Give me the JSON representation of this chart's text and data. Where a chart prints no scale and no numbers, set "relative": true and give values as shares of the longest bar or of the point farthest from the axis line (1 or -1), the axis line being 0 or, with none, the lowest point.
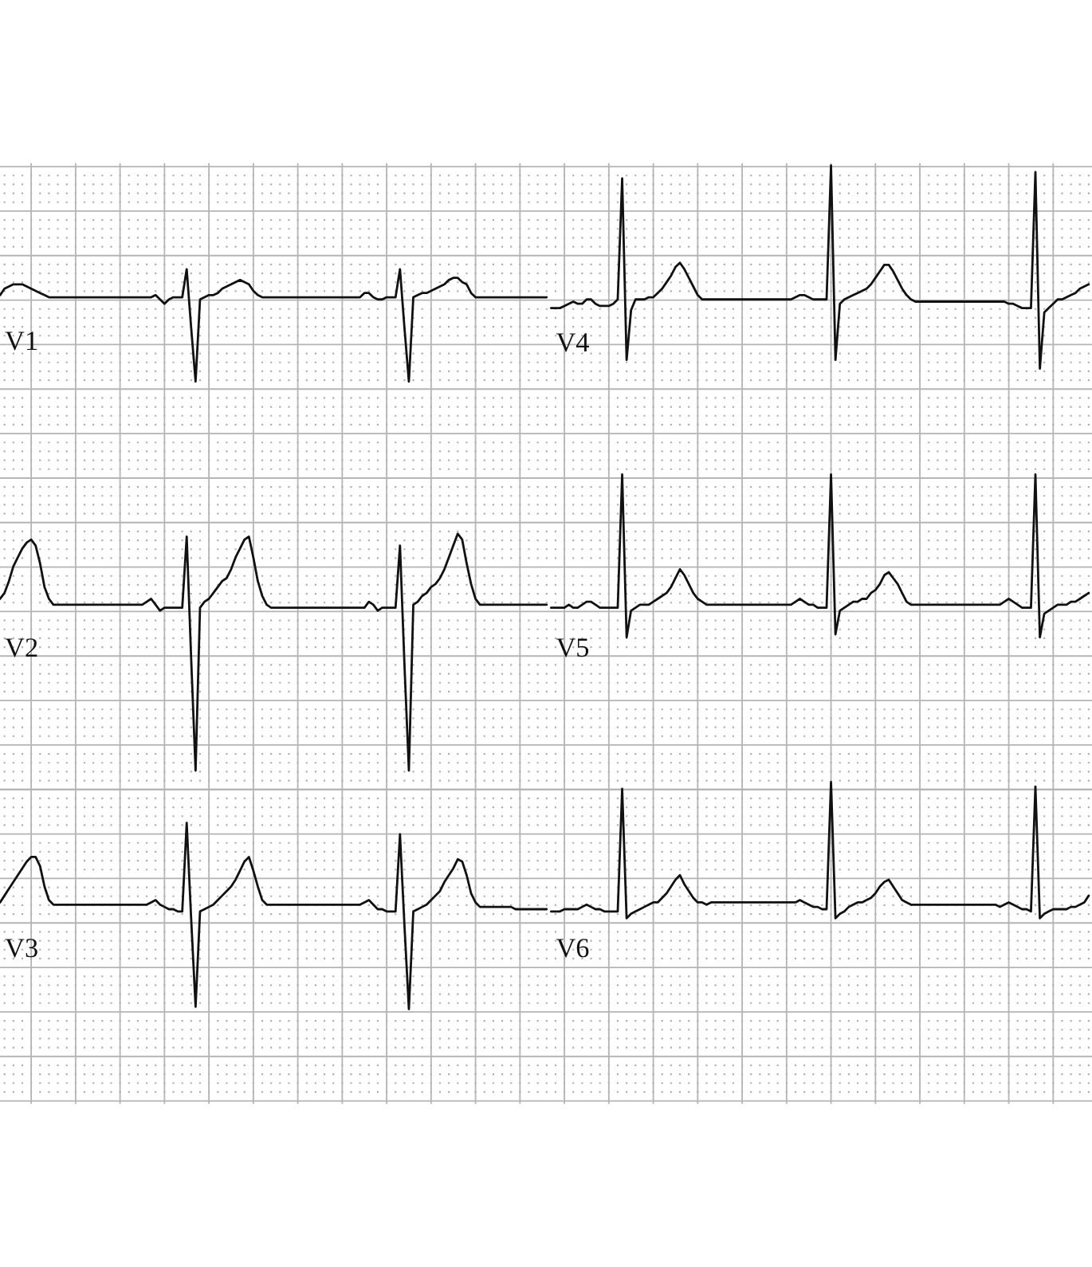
{
  "chart_data": [
    {
      "type": "line",
      "relative": true,
      "grid": true,
      "categories": [
        null,
        null,
        null,
        null,
        null,
        null,
        null,
        null,
        null,
        null,
        null,
        null,
        null,
        null,
        null,
        null,
        null,
        null,
        null,
        null,
        null,
        null,
        null,
        null,
        null,
        null,
        null,
        null,
        null,
        null,
        null,
        null,
        null,
        null,
        null,
        null,
        null,
        null,
        null,
        null,
        null,
        null,
        null,
        null,
        null,
        null,
        null,
        null,
        null,
        null,
        null,
        null,
        null,
        null,
        null,
        null,
        null,
        null,
        null,
        null,
        null,
        null,
        null,
        null,
        null,
        null,
        null,
        null,
        null,
        null,
        null,
        null,
        null,
        null,
        null,
        null,
        null,
        null,
        null,
        null,
        null,
        null,
        null,
        null,
        null,
        null,
        null,
        null,
        null,
        null,
        null,
        null,
        null,
        null,
        null,
        null,
        null,
        null,
        null,
        null,
        null,
        null,
        null,
        null,
        null,
        null,
        null,
        null,
        null,
        null,
        null,
        null,
        null,
        null,
        null,
        null,
        null,
        null,
        null,
        null,
        null,
        null,
        null,
        null,
        null,
        null,
        null,
        null,
        null,
        null,
        null,
        null,
        null,
        null,
        null,
        null,
        null,
        null,
        null,
        null,
        null,
        null,
        null,
        null,
        null,
        null,
        null,
        null,
        null,
        null,
        null,
        null,
        null,
        null,
        null,
        null,
        null,
        null,
        null,
        null,
        null,
        null,
        null,
        null,
        null,
        null,
        null,
        null,
        null,
        null,
        null,
        null,
        null,
        null,
        null,
        null,
        null,
        null,
        null,
        null,
        null,
        null,
        null,
        null,
        null,
        null,
        null,
        null,
        null,
        null,
        null,
        null,
        null,
        null,
        null,
        null,
        null,
        null,
        null,
        null,
        null,
        null,
        null,
        null,
        null,
        null,
        null,
        null,
        null,
        null,
        null,
        null,
        null,
        null,
        null,
        null,
        null,
        null,
        null,
        null,
        null,
        null,
        null,
        null,
        null,
        null,
        null,
        null,
        null,
        null,
        null,
        null,
        null,
        null,
        null,
        null,
        null,
        null,
        null,
        null,
        null,
        null,
        null,
        null,
        null,
        null
      ],
      "series": [
        {
          "name": "V1",
          "color": "#111111",
          "values": [
            0.4,
            0.43,
            0.44,
            0.45,
            0.45,
            0.45,
            0.44,
            0.43,
            0.42,
            0.41,
            0.4,
            0.39,
            0.39,
            0.39,
            0.39,
            0.39,
            0.39,
            0.39,
            0.39,
            0.39,
            0.39,
            0.39,
            0.39,
            0.39,
            0.39,
            0.39,
            0.39,
            0.39,
            0.39,
            0.39,
            0.39,
            0.39,
            0.39,
            0.39,
            0.39,
            0.4,
            0.38,
            0.36,
            0.38,
            0.39,
            0.39,
            0.39,
            0.52,
            0.25,
            0.0,
            0.38,
            0.39,
            0.4,
            0.4,
            0.41,
            0.43,
            0.44,
            0.45,
            0.46,
            0.47,
            0.46,
            0.45,
            0.42,
            0.4,
            0.39,
            0.39,
            0.39,
            0.39,
            0.39,
            0.39,
            0.39,
            0.39,
            0.39,
            0.39,
            0.39,
            0.39,
            0.39,
            0.39,
            0.39,
            0.39,
            0.39,
            0.39,
            0.39,
            0.39,
            0.39,
            0.39,
            0.39,
            0.41,
            0.41,
            0.39,
            0.38,
            0.38,
            0.39,
            0.39,
            0.39,
            0.52,
            0.25,
            0.0,
            0.39,
            0.4,
            0.41,
            0.41,
            0.42,
            0.43,
            0.44,
            0.45,
            0.47,
            0.48,
            0.48,
            0.46,
            0.45,
            0.41,
            0.39,
            0.39,
            0.39,
            0.39,
            0.39,
            0.39,
            0.39,
            0.39,
            0.39,
            0.39,
            0.39,
            0.39,
            0.39,
            0.39,
            0.39,
            0.39,
            0.39,
            null,
            null,
            null,
            null,
            null,
            null,
            null,
            null,
            null,
            null,
            null,
            null,
            null,
            null,
            null,
            null,
            null,
            null,
            null,
            null,
            null,
            null,
            null,
            null,
            null,
            null,
            null,
            null,
            null,
            null,
            null,
            null,
            null,
            null,
            null,
            null,
            null,
            null,
            null,
            null,
            null,
            null,
            null,
            null,
            null,
            null,
            null,
            null,
            null,
            null,
            null,
            null,
            null,
            null,
            null,
            null,
            null,
            null,
            null,
            null,
            null,
            null,
            null,
            null,
            null,
            null,
            null,
            null,
            null,
            null,
            null,
            null,
            null,
            null,
            null,
            null,
            null,
            null,
            null,
            null,
            null,
            null,
            null,
            null,
            null,
            null,
            null,
            null,
            null,
            null,
            null,
            null,
            null,
            null,
            null,
            null,
            null,
            null,
            null,
            null,
            null,
            null,
            null,
            null,
            null,
            null,
            null,
            null,
            null,
            null,
            null,
            null,
            null,
            null,
            null,
            null,
            null,
            null,
            null,
            null,
            null,
            null
          ]
        },
        {
          "name": "V4",
          "color": "#111111",
          "values": [
            null,
            null,
            null,
            null,
            null,
            null,
            null,
            null,
            null,
            null,
            null,
            null,
            null,
            null,
            null,
            null,
            null,
            null,
            null,
            null,
            null,
            null,
            null,
            null,
            null,
            null,
            null,
            null,
            null,
            null,
            null,
            null,
            null,
            null,
            null,
            null,
            null,
            null,
            null,
            null,
            null,
            null,
            null,
            null,
            null,
            null,
            null,
            null,
            null,
            null,
            null,
            null,
            null,
            null,
            null,
            null,
            null,
            null,
            null,
            null,
            null,
            null,
            null,
            null,
            null,
            null,
            null,
            null,
            null,
            null,
            null,
            null,
            null,
            null,
            null,
            null,
            null,
            null,
            null,
            null,
            null,
            null,
            null,
            null,
            null,
            null,
            null,
            null,
            null,
            null,
            null,
            null,
            null,
            null,
            null,
            null,
            null,
            null,
            null,
            null,
            null,
            null,
            null,
            null,
            null,
            null,
            null,
            null,
            null,
            null,
            null,
            null,
            null,
            null,
            null,
            null,
            null,
            null,
            null,
            null,
            null,
            null,
            null,
            null,
            0.34,
            0.34,
            0.34,
            0.35,
            0.36,
            0.37,
            0.36,
            0.36,
            0.38,
            0.38,
            0.36,
            0.35,
            0.35,
            0.35,
            0.36,
            0.38,
            0.94,
            0.1,
            0.33,
            0.38,
            0.38,
            0.38,
            0.39,
            0.39,
            0.41,
            0.43,
            0.46,
            0.49,
            0.53,
            0.55,
            0.52,
            0.48,
            0.44,
            0.4,
            0.38,
            0.38,
            0.38,
            0.38,
            0.38,
            0.38,
            0.38,
            0.38,
            0.38,
            0.38,
            0.38,
            0.38,
            0.38,
            0.38,
            0.38,
            0.38,
            0.38,
            0.38,
            0.38,
            0.38,
            0.38,
            0.39,
            0.4,
            0.4,
            0.39,
            0.38,
            0.38,
            0.38,
            0.38,
            1.0,
            0.1,
            0.36,
            0.38,
            0.39,
            0.4,
            0.41,
            0.42,
            0.43,
            0.45,
            0.48,
            0.51,
            0.54,
            0.54,
            0.51,
            0.47,
            0.43,
            0.4,
            0.38,
            0.37,
            0.37,
            0.37,
            0.37,
            0.37,
            0.37,
            0.37,
            0.37,
            0.37,
            0.37,
            0.37,
            0.37,
            0.37,
            0.37,
            0.37,
            0.37,
            0.37,
            0.37,
            0.37,
            0.37,
            0.37,
            0.36,
            0.36,
            0.35,
            0.34,
            0.34,
            0.34,
            0.97,
            0.06,
            0.32,
            0.34,
            0.36,
            0.38,
            0.38,
            0.39,
            0.4,
            0.41,
            0.43,
            0.44,
            0.45
          ]
        }
      ]
    },
    {
      "type": "line",
      "relative": true,
      "grid": true,
      "categories": [
        null,
        null,
        null,
        null,
        null,
        null,
        null,
        null,
        null,
        null,
        null,
        null,
        null,
        null,
        null,
        null,
        null,
        null,
        null,
        null,
        null,
        null,
        null,
        null,
        null,
        null,
        null,
        null,
        null,
        null,
        null,
        null,
        null,
        null,
        null,
        null,
        null,
        null,
        null,
        null,
        null,
        null,
        null,
        null,
        null,
        null,
        null,
        null,
        null,
        null,
        null,
        null,
        null,
        null,
        null,
        null,
        null,
        null,
        null,
        null,
        null,
        null,
        null,
        null,
        null,
        null,
        null,
        null,
        null,
        null,
        null,
        null,
        null,
        null,
        null,
        null,
        null,
        null,
        null,
        null,
        null,
        null,
        null,
        null,
        null,
        null,
        null,
        null,
        null,
        null,
        null,
        null,
        null,
        null,
        null,
        null,
        null,
        null,
        null,
        null,
        null,
        null,
        null,
        null,
        null,
        null,
        null,
        null,
        null,
        null,
        null,
        null,
        null,
        null,
        null,
        null,
        null,
        null,
        null,
        null,
        null,
        null,
        null,
        null,
        null,
        null,
        null,
        null,
        null,
        null,
        null,
        null,
        null,
        null,
        null,
        null,
        null,
        null,
        null,
        null,
        null,
        null,
        null,
        null,
        null,
        null,
        null,
        null,
        null,
        null,
        null,
        null,
        null,
        null,
        null,
        null,
        null,
        null,
        null,
        null,
        null,
        null,
        null,
        null,
        null,
        null,
        null,
        null,
        null,
        null,
        null,
        null,
        null,
        null,
        null,
        null,
        null,
        null,
        null,
        null,
        null,
        null,
        null,
        null,
        null,
        null,
        null,
        null,
        null,
        null,
        null,
        null,
        null,
        null,
        null,
        null,
        null,
        null,
        null,
        null,
        null,
        null,
        null,
        null,
        null,
        null,
        null,
        null,
        null,
        null,
        null,
        null,
        null,
        null,
        null,
        null,
        null,
        null,
        null,
        null,
        null,
        null,
        null,
        null,
        null,
        null,
        null,
        null,
        null,
        null,
        null,
        null,
        null,
        null,
        null,
        null,
        null,
        null,
        null,
        null,
        null,
        null,
        null,
        null,
        null,
        null
      ],
      "series": [
        {
          "name": "V2",
          "color": "#111111",
          "values": [
            0.58,
            0.6,
            0.64,
            0.69,
            0.72,
            0.75,
            0.77,
            0.78,
            0.76,
            0.7,
            0.62,
            0.58,
            0.56,
            0.56,
            0.56,
            0.56,
            0.56,
            0.56,
            0.56,
            0.56,
            0.56,
            0.56,
            0.56,
            0.56,
            0.56,
            0.56,
            0.56,
            0.56,
            0.56,
            0.56,
            0.56,
            0.56,
            0.56,
            0.57,
            0.58,
            0.56,
            0.54,
            0.55,
            0.55,
            0.55,
            0.55,
            0.55,
            0.79,
            0.38,
            0.0,
            0.55,
            0.57,
            0.58,
            0.6,
            0.62,
            0.64,
            0.65,
            0.68,
            0.72,
            0.75,
            0.78,
            0.79,
            0.72,
            0.64,
            0.59,
            0.56,
            0.55,
            0.55,
            0.55,
            0.55,
            0.55,
            0.55,
            0.55,
            0.55,
            0.55,
            0.55,
            0.55,
            0.55,
            0.55,
            0.55,
            0.55,
            0.55,
            0.55,
            0.55,
            0.55,
            0.55,
            0.55,
            0.55,
            0.57,
            0.56,
            0.54,
            0.55,
            0.55,
            0.55,
            0.55,
            0.76,
            0.36,
            0.0,
            0.56,
            0.57,
            0.59,
            0.6,
            0.62,
            0.63,
            0.65,
            0.68,
            0.72,
            0.76,
            0.8,
            0.78,
            0.7,
            0.63,
            0.58,
            0.56,
            0.56,
            0.56,
            0.56,
            0.56,
            0.56,
            0.56,
            0.56,
            0.56,
            0.56,
            0.56,
            0.56,
            0.56,
            0.56,
            0.56,
            0.56,
            null,
            null,
            null,
            null,
            null,
            null,
            null,
            null,
            null,
            null,
            null,
            null,
            null,
            null,
            null,
            null,
            null,
            null,
            null,
            null,
            null,
            null,
            null,
            null,
            null,
            null,
            null,
            null,
            null,
            null,
            null,
            null,
            null,
            null,
            null,
            null,
            null,
            null,
            null,
            null,
            null,
            null,
            null,
            null,
            null,
            null,
            null,
            null,
            null,
            null,
            null,
            null,
            null,
            null,
            null,
            null,
            null,
            null,
            null,
            null,
            null,
            null,
            null,
            null,
            null,
            null,
            null,
            null,
            null,
            null,
            null,
            null,
            null,
            null,
            null,
            null,
            null,
            null,
            null,
            null,
            null,
            null,
            null,
            null,
            null,
            null,
            null,
            null,
            null,
            null,
            null,
            null,
            null,
            null,
            null,
            null,
            null,
            null,
            null,
            null,
            null,
            null,
            null,
            null,
            null,
            null,
            null,
            null,
            null,
            null,
            null,
            null,
            null,
            null,
            null,
            null,
            null,
            null,
            null,
            null,
            null,
            null
          ]
        },
        {
          "name": "V5",
          "color": "#111111",
          "values": [
            null,
            null,
            null,
            null,
            null,
            null,
            null,
            null,
            null,
            null,
            null,
            null,
            null,
            null,
            null,
            null,
            null,
            null,
            null,
            null,
            null,
            null,
            null,
            null,
            null,
            null,
            null,
            null,
            null,
            null,
            null,
            null,
            null,
            null,
            null,
            null,
            null,
            null,
            null,
            null,
            null,
            null,
            null,
            null,
            null,
            null,
            null,
            null,
            null,
            null,
            null,
            null,
            null,
            null,
            null,
            null,
            null,
            null,
            null,
            null,
            null,
            null,
            null,
            null,
            null,
            null,
            null,
            null,
            null,
            null,
            null,
            null,
            null,
            null,
            null,
            null,
            null,
            null,
            null,
            null,
            null,
            null,
            null,
            null,
            null,
            null,
            null,
            null,
            null,
            null,
            null,
            null,
            null,
            null,
            null,
            null,
            null,
            null,
            null,
            null,
            null,
            null,
            null,
            null,
            null,
            null,
            null,
            null,
            null,
            null,
            null,
            null,
            null,
            null,
            null,
            null,
            null,
            null,
            null,
            null,
            null,
            null,
            null,
            null,
            0.55,
            0.55,
            0.55,
            0.55,
            0.56,
            0.55,
            0.55,
            0.56,
            0.57,
            0.57,
            0.56,
            0.55,
            0.55,
            0.55,
            0.55,
            0.55,
            1.0,
            0.45,
            0.54,
            0.55,
            0.56,
            0.56,
            0.56,
            0.57,
            0.58,
            0.59,
            0.6,
            0.62,
            0.65,
            0.68,
            0.66,
            0.63,
            0.6,
            0.58,
            0.57,
            0.56,
            0.56,
            0.56,
            0.56,
            0.56,
            0.56,
            0.56,
            0.56,
            0.56,
            0.56,
            0.56,
            0.56,
            0.56,
            0.56,
            0.56,
            0.56,
            0.56,
            0.56,
            0.56,
            0.56,
            0.57,
            0.58,
            0.57,
            0.56,
            0.56,
            0.55,
            0.55,
            0.55,
            1.0,
            0.46,
            0.54,
            0.55,
            0.56,
            0.57,
            0.57,
            0.58,
            0.58,
            0.6,
            0.61,
            0.63,
            0.66,
            0.67,
            0.65,
            0.63,
            0.6,
            0.57,
            0.56,
            0.56,
            0.56,
            0.56,
            0.56,
            0.56,
            0.56,
            0.56,
            0.56,
            0.56,
            0.56,
            0.56,
            0.56,
            0.56,
            0.56,
            0.56,
            0.56,
            0.56,
            0.56,
            0.56,
            0.56,
            0.57,
            0.58,
            0.57,
            0.56,
            0.55,
            0.55,
            0.55,
            1.0,
            0.45,
            0.53,
            0.54,
            0.55,
            0.56,
            0.56,
            0.56,
            0.57,
            0.57,
            0.58,
            0.59,
            0.6
          ]
        }
      ]
    },
    {
      "type": "line",
      "relative": true,
      "grid": true,
      "categories": [
        null,
        null,
        null,
        null,
        null,
        null,
        null,
        null,
        null,
        null,
        null,
        null,
        null,
        null,
        null,
        null,
        null,
        null,
        null,
        null,
        null,
        null,
        null,
        null,
        null,
        null,
        null,
        null,
        null,
        null,
        null,
        null,
        null,
        null,
        null,
        null,
        null,
        null,
        null,
        null,
        null,
        null,
        null,
        null,
        null,
        null,
        null,
        null,
        null,
        null,
        null,
        null,
        null,
        null,
        null,
        null,
        null,
        null,
        null,
        null,
        null,
        null,
        null,
        null,
        null,
        null,
        null,
        null,
        null,
        null,
        null,
        null,
        null,
        null,
        null,
        null,
        null,
        null,
        null,
        null,
        null,
        null,
        null,
        null,
        null,
        null,
        null,
        null,
        null,
        null,
        null,
        null,
        null,
        null,
        null,
        null,
        null,
        null,
        null,
        null,
        null,
        null,
        null,
        null,
        null,
        null,
        null,
        null,
        null,
        null,
        null,
        null,
        null,
        null,
        null,
        null,
        null,
        null,
        null,
        null,
        null,
        null,
        null,
        null,
        null,
        null,
        null,
        null,
        null,
        null,
        null,
        null,
        null,
        null,
        null,
        null,
        null,
        null,
        null,
        null,
        null,
        null,
        null,
        null,
        null,
        null,
        null,
        null,
        null,
        null,
        null,
        null,
        null,
        null,
        null,
        null,
        null,
        null,
        null,
        null,
        null,
        null,
        null,
        null,
        null,
        null,
        null,
        null,
        null,
        null,
        null,
        null,
        null,
        null,
        null,
        null,
        null,
        null,
        null,
        null,
        null,
        null,
        null,
        null,
        null,
        null,
        null,
        null,
        null,
        null,
        null,
        null,
        null,
        null,
        null,
        null,
        null,
        null,
        null,
        null,
        null,
        null,
        null,
        null,
        null,
        null,
        null,
        null,
        null,
        null,
        null,
        null,
        null,
        null,
        null,
        null,
        null,
        null,
        null,
        null,
        null,
        null,
        null,
        null,
        null,
        null,
        null,
        null,
        null,
        null,
        null,
        null,
        null,
        null,
        null,
        null,
        null,
        null,
        null,
        null,
        null,
        null,
        null,
        null,
        null,
        null
      ],
      "series": [
        {
          "name": "V3",
          "color": "#111111",
          "values": [
            0.47,
            0.5,
            0.53,
            0.56,
            0.59,
            0.62,
            0.65,
            0.67,
            0.67,
            0.63,
            0.54,
            0.48,
            0.46,
            0.46,
            0.46,
            0.46,
            0.46,
            0.46,
            0.46,
            0.46,
            0.46,
            0.46,
            0.46,
            0.46,
            0.46,
            0.46,
            0.46,
            0.46,
            0.46,
            0.46,
            0.46,
            0.46,
            0.46,
            0.46,
            0.47,
            0.48,
            0.46,
            0.45,
            0.44,
            0.44,
            0.43,
            0.43,
            0.82,
            0.4,
            0.01,
            0.43,
            0.44,
            0.45,
            0.46,
            0.48,
            0.5,
            0.52,
            0.54,
            0.57,
            0.61,
            0.65,
            0.67,
            0.61,
            0.54,
            0.48,
            0.46,
            0.46,
            0.46,
            0.46,
            0.46,
            0.46,
            0.46,
            0.46,
            0.46,
            0.46,
            0.46,
            0.46,
            0.46,
            0.46,
            0.46,
            0.46,
            0.46,
            0.46,
            0.46,
            0.46,
            0.46,
            0.46,
            0.47,
            0.48,
            0.46,
            0.44,
            0.44,
            0.43,
            0.43,
            0.43,
            0.77,
            0.37,
            0.0,
            0.43,
            0.44,
            0.45,
            0.46,
            0.48,
            0.5,
            0.52,
            0.56,
            0.59,
            0.62,
            0.66,
            0.65,
            0.59,
            0.51,
            0.47,
            0.45,
            0.45,
            0.45,
            0.45,
            0.45,
            0.45,
            0.45,
            0.45,
            0.44,
            0.44,
            0.44,
            0.44,
            0.44,
            0.44,
            0.44,
            0.44,
            null,
            null,
            null,
            null,
            null,
            null,
            null,
            null,
            null,
            null,
            null,
            null,
            null,
            null,
            null,
            null,
            null,
            null,
            null,
            null,
            null,
            null,
            null,
            null,
            null,
            null,
            null,
            null,
            null,
            null,
            null,
            null,
            null,
            null,
            null,
            null,
            null,
            null,
            null,
            null,
            null,
            null,
            null,
            null,
            null,
            null,
            null,
            null,
            null,
            null,
            null,
            null,
            null,
            null,
            null,
            null,
            null,
            null,
            null,
            null,
            null,
            null,
            null,
            null,
            null,
            null,
            null,
            null,
            null,
            null,
            null,
            null,
            null,
            null,
            null,
            null,
            null,
            null,
            null,
            null,
            null,
            null,
            null,
            null,
            null,
            null,
            null,
            null,
            null,
            null,
            null,
            null,
            null,
            null,
            null,
            null,
            null,
            null,
            null,
            null,
            null,
            null,
            null,
            null,
            null,
            null,
            null,
            null,
            null,
            null,
            null,
            null,
            null,
            null,
            null,
            null,
            null,
            null,
            null,
            null,
            null,
            null
          ]
        },
        {
          "name": "V6",
          "color": "#111111",
          "values": [
            null,
            null,
            null,
            null,
            null,
            null,
            null,
            null,
            null,
            null,
            null,
            null,
            null,
            null,
            null,
            null,
            null,
            null,
            null,
            null,
            null,
            null,
            null,
            null,
            null,
            null,
            null,
            null,
            null,
            null,
            null,
            null,
            null,
            null,
            null,
            null,
            null,
            null,
            null,
            null,
            null,
            null,
            null,
            null,
            null,
            null,
            null,
            null,
            null,
            null,
            null,
            null,
            null,
            null,
            null,
            null,
            null,
            null,
            null,
            null,
            null,
            null,
            null,
            null,
            null,
            null,
            null,
            null,
            null,
            null,
            null,
            null,
            null,
            null,
            null,
            null,
            null,
            null,
            null,
            null,
            null,
            null,
            null,
            null,
            null,
            null,
            null,
            null,
            null,
            null,
            null,
            null,
            null,
            null,
            null,
            null,
            null,
            null,
            null,
            null,
            null,
            null,
            null,
            null,
            null,
            null,
            null,
            null,
            null,
            null,
            null,
            null,
            null,
            null,
            null,
            null,
            null,
            null,
            null,
            null,
            null,
            null,
            null,
            null,
            0.43,
            0.43,
            0.43,
            0.44,
            0.44,
            0.44,
            0.44,
            0.45,
            0.46,
            0.45,
            0.44,
            0.44,
            0.43,
            0.43,
            0.43,
            0.43,
            0.97,
            0.4,
            0.42,
            0.43,
            0.44,
            0.45,
            0.46,
            0.47,
            0.47,
            0.49,
            0.51,
            0.54,
            0.57,
            0.59,
            0.55,
            0.52,
            0.49,
            0.47,
            0.47,
            0.46,
            0.47,
            0.47,
            0.47,
            0.47,
            0.47,
            0.47,
            0.47,
            0.47,
            0.47,
            0.47,
            0.47,
            0.47,
            0.47,
            0.47,
            0.47,
            0.47,
            0.47,
            0.47,
            0.47,
            0.47,
            0.48,
            0.47,
            0.46,
            0.45,
            0.45,
            0.44,
            0.44,
            1.0,
            0.4,
            0.42,
            0.43,
            0.45,
            0.46,
            0.47,
            0.47,
            0.48,
            0.49,
            0.51,
            0.54,
            0.56,
            0.57,
            0.54,
            0.51,
            0.48,
            0.47,
            0.46,
            0.46,
            0.46,
            0.46,
            0.46,
            0.46,
            0.46,
            0.46,
            0.46,
            0.46,
            0.46,
            0.46,
            0.46,
            0.46,
            0.46,
            0.46,
            0.46,
            0.46,
            0.46,
            0.46,
            0.45,
            0.46,
            0.47,
            0.46,
            0.45,
            0.44,
            0.44,
            0.43,
            0.98,
            0.4,
            0.42,
            0.43,
            0.44,
            0.44,
            0.44,
            0.44,
            0.45,
            0.45,
            0.46,
            0.47,
            0.5
          ]
        }
      ]
    }
  ]
}
